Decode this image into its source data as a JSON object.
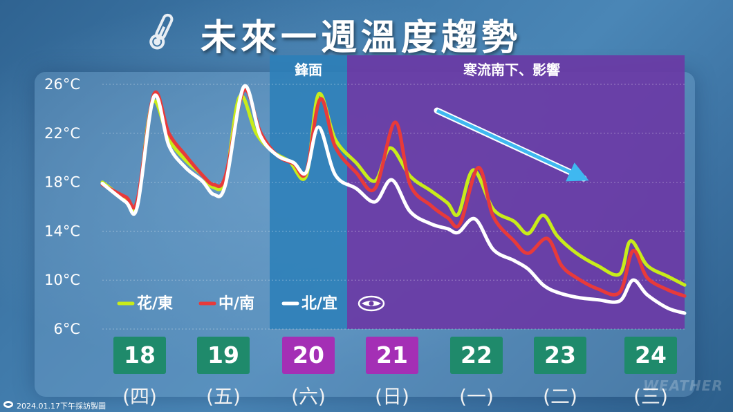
{
  "title": "未來一週溫度趨勢",
  "zones": [
    {
      "label": "鋒面",
      "color": "#2b7fb8"
    },
    {
      "label": "寒流南下、影響",
      "color": "#6a3aa5"
    }
  ],
  "legend_logo": "weather-logo-icon",
  "days": [
    {
      "date": "18",
      "weekday": "(四)",
      "color": "#1f8a6b"
    },
    {
      "date": "19",
      "weekday": "(五)",
      "color": "#1f8a6b"
    },
    {
      "date": "20",
      "weekday": "(六)",
      "color": "#a42fb5"
    },
    {
      "date": "21",
      "weekday": "(日)",
      "color": "#a42fb5"
    },
    {
      "date": "22",
      "weekday": "(一)",
      "color": "#1f8a6b"
    },
    {
      "date": "23",
      "weekday": "(二)",
      "color": "#1f8a6b"
    },
    {
      "date": "24",
      "weekday": "(三)",
      "color": "#1f8a6b"
    }
  ],
  "credit": "2024.01.17下午採訪製圖",
  "watermark": "WEATHER",
  "chart_data": {
    "type": "line",
    "title": "未來一週溫度趨勢",
    "yticks": [
      "26°C",
      "22°C",
      "18°C",
      "14°C",
      "10°C",
      "6°C"
    ],
    "ylim": [
      6,
      26
    ],
    "xlim": [
      17.5,
      24.5
    ],
    "grid": true,
    "trend_arrow": "downward",
    "series": [
      {
        "name": "花/東",
        "color": "#c8ec1a",
        "points": [
          [
            17.5,
            18
          ],
          [
            17.78,
            16.6
          ],
          [
            17.92,
            16.2
          ],
          [
            18.1,
            24.5
          ],
          [
            18.3,
            21.5
          ],
          [
            18.5,
            19.8
          ],
          [
            18.7,
            18.6
          ],
          [
            18.83,
            17.6
          ],
          [
            18.98,
            18.2
          ],
          [
            19.15,
            25
          ],
          [
            19.35,
            22
          ],
          [
            19.55,
            20.5
          ],
          [
            19.75,
            19.7
          ],
          [
            19.95,
            18.5
          ],
          [
            20.1,
            25.2
          ],
          [
            20.3,
            21.5
          ],
          [
            20.55,
            19.6
          ],
          [
            20.78,
            18.1
          ],
          [
            20.96,
            20.8
          ],
          [
            21.2,
            18.5
          ],
          [
            21.45,
            17.3
          ],
          [
            21.65,
            16.3
          ],
          [
            21.78,
            15.4
          ],
          [
            21.96,
            19
          ],
          [
            22.2,
            15.8
          ],
          [
            22.45,
            14.8
          ],
          [
            22.62,
            13.8
          ],
          [
            22.8,
            15.3
          ],
          [
            22.97,
            13.6
          ],
          [
            23.2,
            12.2
          ],
          [
            23.45,
            11.2
          ],
          [
            23.72,
            10.5
          ],
          [
            23.85,
            13.2
          ],
          [
            24.05,
            11.2
          ],
          [
            24.3,
            10.3
          ],
          [
            24.5,
            9.6
          ]
        ]
      },
      {
        "name": "中/南",
        "color": "#e83a3a",
        "points": [
          [
            17.5,
            17.8
          ],
          [
            17.78,
            16.8
          ],
          [
            17.92,
            16.5
          ],
          [
            18.12,
            25.2
          ],
          [
            18.3,
            22
          ],
          [
            18.5,
            20.2
          ],
          [
            18.7,
            18.6
          ],
          [
            18.84,
            17.8
          ],
          [
            18.98,
            18.5
          ],
          [
            19.2,
            25.5
          ],
          [
            19.4,
            22.1
          ],
          [
            19.6,
            20.2
          ],
          [
            19.8,
            19.5
          ],
          [
            19.95,
            18.8
          ],
          [
            20.12,
            24.8
          ],
          [
            20.3,
            20.9
          ],
          [
            20.55,
            18.8
          ],
          [
            20.78,
            17.5
          ],
          [
            21.02,
            22.9
          ],
          [
            21.2,
            17.8
          ],
          [
            21.45,
            16.1
          ],
          [
            21.65,
            15.1
          ],
          [
            21.8,
            14.6
          ],
          [
            22.02,
            19.2
          ],
          [
            22.2,
            15.2
          ],
          [
            22.45,
            13.2
          ],
          [
            22.62,
            12.2
          ],
          [
            22.85,
            13.4
          ],
          [
            23.02,
            11.2
          ],
          [
            23.2,
            10.2
          ],
          [
            23.45,
            9.3
          ],
          [
            23.72,
            9.0
          ],
          [
            23.88,
            12.4
          ],
          [
            24.05,
            10.2
          ],
          [
            24.3,
            9.2
          ],
          [
            24.5,
            8.7
          ]
        ]
      },
      {
        "name": "北/宜",
        "color": "#ffffff",
        "points": [
          [
            17.5,
            17.9
          ],
          [
            17.78,
            16.4
          ],
          [
            17.92,
            16.0
          ],
          [
            18.12,
            25
          ],
          [
            18.3,
            21
          ],
          [
            18.5,
            19.2
          ],
          [
            18.7,
            18.1
          ],
          [
            18.84,
            17.0
          ],
          [
            18.98,
            17.8
          ],
          [
            19.2,
            25.8
          ],
          [
            19.4,
            21.8
          ],
          [
            19.6,
            20.2
          ],
          [
            19.8,
            19.6
          ],
          [
            19.95,
            18.8
          ],
          [
            20.1,
            22.5
          ],
          [
            20.3,
            18.6
          ],
          [
            20.55,
            17.5
          ],
          [
            20.78,
            16.4
          ],
          [
            20.98,
            18.2
          ],
          [
            21.2,
            15.6
          ],
          [
            21.45,
            14.6
          ],
          [
            21.65,
            14.2
          ],
          [
            21.78,
            13.9
          ],
          [
            21.98,
            15
          ],
          [
            22.2,
            12.5
          ],
          [
            22.45,
            11.6
          ],
          [
            22.62,
            10.9
          ],
          [
            22.8,
            9.6
          ],
          [
            22.97,
            9.0
          ],
          [
            23.2,
            8.6
          ],
          [
            23.45,
            8.4
          ],
          [
            23.72,
            8.3
          ],
          [
            23.88,
            10.0
          ],
          [
            24.05,
            8.8
          ],
          [
            24.3,
            7.7
          ],
          [
            24.5,
            7.3
          ]
        ]
      }
    ]
  }
}
